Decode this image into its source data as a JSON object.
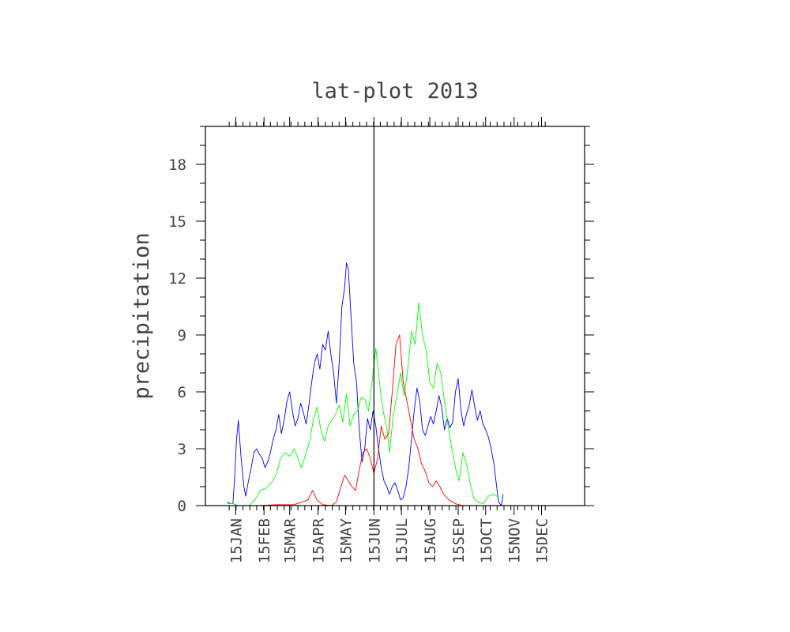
{
  "chart_data": {
    "type": "line",
    "title": "lat-plot 2013",
    "xlabel": "",
    "ylabel": "precipitation",
    "ylim": [
      0,
      20
    ],
    "xlim": [
      "2012-12-13",
      "2014-01-31"
    ],
    "y_ticks": [
      0,
      3,
      6,
      9,
      12,
      15,
      18
    ],
    "x_tick_labels": [
      "15JAN",
      "15FEB",
      "15MAR",
      "15APR",
      "15MAY",
      "15JUN",
      "15JUL",
      "15AUG",
      "15SEP",
      "15OCT",
      "15NOV",
      "15DEC"
    ],
    "x_tick_dates": [
      "2013-01-15",
      "2013-02-15",
      "2013-03-15",
      "2013-04-15",
      "2013-05-15",
      "2013-06-15",
      "2013-07-15",
      "2013-08-15",
      "2013-09-15",
      "2013-10-15",
      "2013-11-15",
      "2013-12-15"
    ],
    "reference_line": {
      "date": "2013-06-15",
      "color": "#000000"
    },
    "grid": false,
    "series": [
      {
        "color": "#0000ff",
        "points": [
          [
            "2013-01-06",
            0.2
          ],
          [
            "2013-01-09",
            0.1
          ],
          [
            "2013-01-12",
            0.1
          ],
          [
            "2013-01-14",
            1.5
          ],
          [
            "2013-01-16",
            3.5
          ],
          [
            "2013-01-18",
            4.5
          ],
          [
            "2013-01-21",
            2.5
          ],
          [
            "2013-01-24",
            1.0
          ],
          [
            "2013-01-26",
            0.5
          ],
          [
            "2013-01-29",
            1.3
          ],
          [
            "2013-02-01",
            2.0
          ],
          [
            "2013-02-04",
            2.8
          ],
          [
            "2013-02-07",
            3.0
          ],
          [
            "2013-02-10",
            2.7
          ],
          [
            "2013-02-13",
            2.5
          ],
          [
            "2013-02-16",
            2.0
          ],
          [
            "2013-02-19",
            2.3
          ],
          [
            "2013-02-22",
            2.8
          ],
          [
            "2013-02-25",
            3.5
          ],
          [
            "2013-02-28",
            4.0
          ],
          [
            "2013-03-03",
            4.8
          ],
          [
            "2013-03-06",
            3.8
          ],
          [
            "2013-03-09",
            4.5
          ],
          [
            "2013-03-12",
            5.5
          ],
          [
            "2013-03-15",
            6.0
          ],
          [
            "2013-03-18",
            5.0
          ],
          [
            "2013-03-21",
            4.2
          ],
          [
            "2013-03-24",
            4.6
          ],
          [
            "2013-03-27",
            5.4
          ],
          [
            "2013-03-30",
            4.9
          ],
          [
            "2013-04-02",
            4.3
          ],
          [
            "2013-04-05",
            5.3
          ],
          [
            "2013-04-08",
            6.5
          ],
          [
            "2013-04-11",
            7.5
          ],
          [
            "2013-04-14",
            8.0
          ],
          [
            "2013-04-17",
            7.2
          ],
          [
            "2013-04-20",
            8.5
          ],
          [
            "2013-04-23",
            8.2
          ],
          [
            "2013-04-26",
            9.2
          ],
          [
            "2013-04-29",
            8.0
          ],
          [
            "2013-05-02",
            7.0
          ],
          [
            "2013-05-05",
            5.4
          ],
          [
            "2013-05-08",
            7.5
          ],
          [
            "2013-05-11",
            10.5
          ],
          [
            "2013-05-14",
            11.5
          ],
          [
            "2013-05-16",
            12.8
          ],
          [
            "2013-05-18",
            12.5
          ],
          [
            "2013-05-21",
            10.0
          ],
          [
            "2013-05-24",
            7.5
          ],
          [
            "2013-05-27",
            6.5
          ],
          [
            "2013-05-30",
            4.0
          ],
          [
            "2013-06-02",
            2.3
          ],
          [
            "2013-06-05",
            3.0
          ],
          [
            "2013-06-08",
            4.6
          ],
          [
            "2013-06-11",
            4.0
          ],
          [
            "2013-06-14",
            5.0
          ],
          [
            "2013-06-17",
            4.2
          ],
          [
            "2013-06-20",
            3.0
          ],
          [
            "2013-06-23",
            2.0
          ],
          [
            "2013-06-26",
            1.3
          ],
          [
            "2013-06-29",
            1.0
          ],
          [
            "2013-07-02",
            0.6
          ],
          [
            "2013-07-05",
            1.0
          ],
          [
            "2013-07-08",
            1.2
          ],
          [
            "2013-07-11",
            0.8
          ],
          [
            "2013-07-14",
            0.3
          ],
          [
            "2013-07-17",
            0.4
          ],
          [
            "2013-07-20",
            1.0
          ],
          [
            "2013-07-23",
            2.0
          ],
          [
            "2013-07-26",
            3.5
          ],
          [
            "2013-07-29",
            5.0
          ],
          [
            "2013-08-01",
            6.2
          ],
          [
            "2013-08-04",
            5.5
          ],
          [
            "2013-08-07",
            4.0
          ],
          [
            "2013-08-10",
            3.7
          ],
          [
            "2013-08-13",
            4.2
          ],
          [
            "2013-08-16",
            4.7
          ],
          [
            "2013-08-19",
            4.3
          ],
          [
            "2013-08-22",
            5.0
          ],
          [
            "2013-08-25",
            5.8
          ],
          [
            "2013-08-28",
            5.2
          ],
          [
            "2013-08-31",
            4.0
          ],
          [
            "2013-09-03",
            4.6
          ],
          [
            "2013-09-06",
            4.1
          ],
          [
            "2013-09-09",
            4.4
          ],
          [
            "2013-09-12",
            6.0
          ],
          [
            "2013-09-15",
            6.7
          ],
          [
            "2013-09-18",
            5.0
          ],
          [
            "2013-09-21",
            4.2
          ],
          [
            "2013-09-24",
            4.8
          ],
          [
            "2013-09-27",
            5.3
          ],
          [
            "2013-09-30",
            6.1
          ],
          [
            "2013-10-03",
            5.2
          ],
          [
            "2013-10-06",
            4.5
          ],
          [
            "2013-10-09",
            5.0
          ],
          [
            "2013-10-12",
            4.3
          ],
          [
            "2013-10-15",
            4.0
          ],
          [
            "2013-10-18",
            3.6
          ],
          [
            "2013-10-21",
            3.0
          ],
          [
            "2013-10-24",
            2.2
          ],
          [
            "2013-10-27",
            1.0
          ],
          [
            "2013-10-29",
            0.2
          ],
          [
            "2013-11-01",
            0.0
          ],
          [
            "2013-11-03",
            0.6
          ]
        ]
      },
      {
        "color": "#00ff00",
        "points": [
          [
            "2013-01-06",
            0.1
          ],
          [
            "2013-01-12",
            0.1
          ],
          [
            "2013-01-18",
            0.0
          ],
          [
            "2013-01-24",
            0.0
          ],
          [
            "2013-01-30",
            0.0
          ],
          [
            "2013-02-05",
            0.3
          ],
          [
            "2013-02-11",
            0.8
          ],
          [
            "2013-02-17",
            0.9
          ],
          [
            "2013-02-23",
            1.2
          ],
          [
            "2013-03-01",
            1.7
          ],
          [
            "2013-03-05",
            2.5
          ],
          [
            "2013-03-10",
            2.8
          ],
          [
            "2013-03-15",
            2.6
          ],
          [
            "2013-03-20",
            3.0
          ],
          [
            "2013-03-24",
            2.5
          ],
          [
            "2013-03-28",
            2.0
          ],
          [
            "2013-04-02",
            2.8
          ],
          [
            "2013-04-06",
            3.4
          ],
          [
            "2013-04-10",
            4.6
          ],
          [
            "2013-04-14",
            5.2
          ],
          [
            "2013-04-18",
            4.0
          ],
          [
            "2013-04-22",
            3.4
          ],
          [
            "2013-04-26",
            4.2
          ],
          [
            "2013-04-30",
            4.5
          ],
          [
            "2013-05-04",
            4.8
          ],
          [
            "2013-05-08",
            5.3
          ],
          [
            "2013-05-12",
            4.4
          ],
          [
            "2013-05-16",
            5.9
          ],
          [
            "2013-05-20",
            4.2
          ],
          [
            "2013-05-24",
            4.8
          ],
          [
            "2013-05-28",
            5.0
          ],
          [
            "2013-06-01",
            5.7
          ],
          [
            "2013-06-05",
            5.6
          ],
          [
            "2013-06-09",
            5.0
          ],
          [
            "2013-06-13",
            6.5
          ],
          [
            "2013-06-17",
            8.3
          ],
          [
            "2013-06-21",
            6.5
          ],
          [
            "2013-06-25",
            5.0
          ],
          [
            "2013-06-29",
            4.1
          ],
          [
            "2013-07-02",
            2.8
          ],
          [
            "2013-07-06",
            4.7
          ],
          [
            "2013-07-10",
            5.8
          ],
          [
            "2013-07-14",
            7.0
          ],
          [
            "2013-07-18",
            5.8
          ],
          [
            "2013-07-22",
            7.2
          ],
          [
            "2013-07-26",
            9.2
          ],
          [
            "2013-07-30",
            8.5
          ],
          [
            "2013-08-03",
            10.7
          ],
          [
            "2013-08-07",
            9.0
          ],
          [
            "2013-08-11",
            8.2
          ],
          [
            "2013-08-15",
            6.5
          ],
          [
            "2013-08-19",
            6.2
          ],
          [
            "2013-08-23",
            7.5
          ],
          [
            "2013-08-27",
            7.0
          ],
          [
            "2013-08-31",
            5.5
          ],
          [
            "2013-09-04",
            4.2
          ],
          [
            "2013-09-08",
            3.0
          ],
          [
            "2013-09-12",
            2.0
          ],
          [
            "2013-09-16",
            1.3
          ],
          [
            "2013-09-20",
            2.8
          ],
          [
            "2013-09-24",
            2.2
          ],
          [
            "2013-09-28",
            1.2
          ],
          [
            "2013-10-02",
            0.4
          ],
          [
            "2013-10-06",
            0.2
          ],
          [
            "2013-10-12",
            0.1
          ],
          [
            "2013-10-18",
            0.5
          ],
          [
            "2013-10-24",
            0.6
          ],
          [
            "2013-10-30",
            0.4
          ]
        ]
      },
      {
        "color": "#ff0000",
        "points": [
          [
            "2013-01-20",
            0.0
          ],
          [
            "2013-02-10",
            0.0
          ],
          [
            "2013-03-01",
            0.05
          ],
          [
            "2013-03-20",
            0.05
          ],
          [
            "2013-04-04",
            0.3
          ],
          [
            "2013-04-09",
            0.8
          ],
          [
            "2013-04-14",
            0.3
          ],
          [
            "2013-04-20",
            0.05
          ],
          [
            "2013-04-30",
            0.0
          ],
          [
            "2013-05-05",
            0.2
          ],
          [
            "2013-05-10",
            1.0
          ],
          [
            "2013-05-14",
            1.6
          ],
          [
            "2013-05-18",
            1.3
          ],
          [
            "2013-05-22",
            1.0
          ],
          [
            "2013-05-26",
            0.8
          ],
          [
            "2013-05-30",
            1.9
          ],
          [
            "2013-06-03",
            2.8
          ],
          [
            "2013-06-07",
            3.0
          ],
          [
            "2013-06-11",
            2.5
          ],
          [
            "2013-06-15",
            1.7
          ],
          [
            "2013-06-19",
            2.5
          ],
          [
            "2013-06-23",
            4.2
          ],
          [
            "2013-06-27",
            3.5
          ],
          [
            "2013-07-01",
            3.8
          ],
          [
            "2013-07-05",
            6.0
          ],
          [
            "2013-07-09",
            8.5
          ],
          [
            "2013-07-13",
            9.0
          ],
          [
            "2013-07-17",
            6.5
          ],
          [
            "2013-07-21",
            5.5
          ],
          [
            "2013-07-25",
            4.5
          ],
          [
            "2013-07-29",
            3.5
          ],
          [
            "2013-08-02",
            3.0
          ],
          [
            "2013-08-06",
            2.2
          ],
          [
            "2013-08-10",
            1.8
          ],
          [
            "2013-08-14",
            1.2
          ],
          [
            "2013-08-18",
            1.0
          ],
          [
            "2013-08-22",
            1.3
          ],
          [
            "2013-08-26",
            1.0
          ],
          [
            "2013-08-30",
            0.6
          ],
          [
            "2013-09-05",
            0.3
          ],
          [
            "2013-09-12",
            0.1
          ],
          [
            "2013-09-20",
            0.0
          ],
          [
            "2013-10-05",
            0.0
          ]
        ]
      }
    ]
  }
}
